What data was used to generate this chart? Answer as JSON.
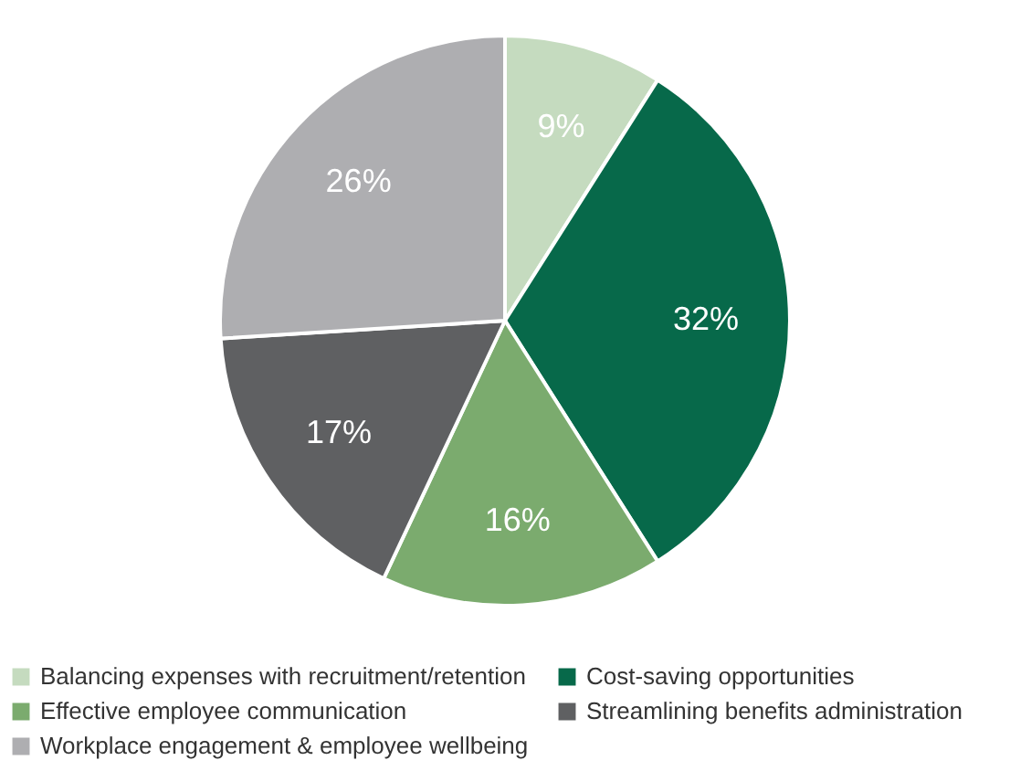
{
  "chart_data": {
    "type": "pie",
    "categories": [
      "Balancing expenses with recruitment/retention",
      "Cost-saving opportunities",
      "Effective employee communication",
      "Streamlining benefits administration",
      "Workplace engagement & employee wellbeing"
    ],
    "values": [
      9,
      32,
      16,
      17,
      26
    ],
    "colors": [
      "#c5dbbf",
      "#07694a",
      "#7bab6e",
      "#5f6062",
      "#aeaeb1"
    ],
    "value_labels": [
      "9%",
      "32%",
      "16%",
      "17%",
      "26%"
    ],
    "legend": "bottom"
  }
}
